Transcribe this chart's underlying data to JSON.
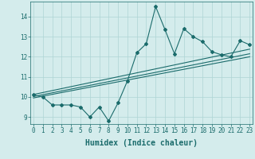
{
  "x_data": [
    0,
    1,
    2,
    3,
    4,
    5,
    6,
    7,
    8,
    9,
    10,
    11,
    12,
    13,
    14,
    15,
    16,
    17,
    18,
    19,
    20,
    21,
    22,
    23
  ],
  "y_data": [
    10.1,
    10.0,
    9.6,
    9.6,
    9.6,
    9.5,
    9.0,
    9.5,
    8.8,
    9.7,
    10.8,
    12.2,
    12.65,
    14.5,
    13.35,
    12.15,
    13.4,
    13.0,
    12.75,
    12.25,
    12.1,
    12.0,
    12.8,
    12.6
  ],
  "trend1_x": [
    0,
    23
  ],
  "trend1_y": [
    10.02,
    12.15
  ],
  "trend2_x": [
    0,
    23
  ],
  "trend2_y": [
    10.12,
    12.38
  ],
  "trend3_x": [
    0,
    23
  ],
  "trend3_y": [
    9.95,
    12.0
  ],
  "xlim": [
    -0.3,
    23.3
  ],
  "ylim": [
    8.65,
    14.75
  ],
  "xticks": [
    0,
    1,
    2,
    3,
    4,
    5,
    6,
    7,
    8,
    9,
    10,
    11,
    12,
    13,
    14,
    15,
    16,
    17,
    18,
    19,
    20,
    21,
    22,
    23
  ],
  "yticks": [
    9,
    10,
    11,
    12,
    13,
    14
  ],
  "xlabel": "Humidex (Indice chaleur)",
  "line_color": "#1a6b6b",
  "bg_color": "#d4ecec",
  "grid_color": "#aed4d4",
  "tick_fontsize": 5.5,
  "label_fontsize": 7
}
